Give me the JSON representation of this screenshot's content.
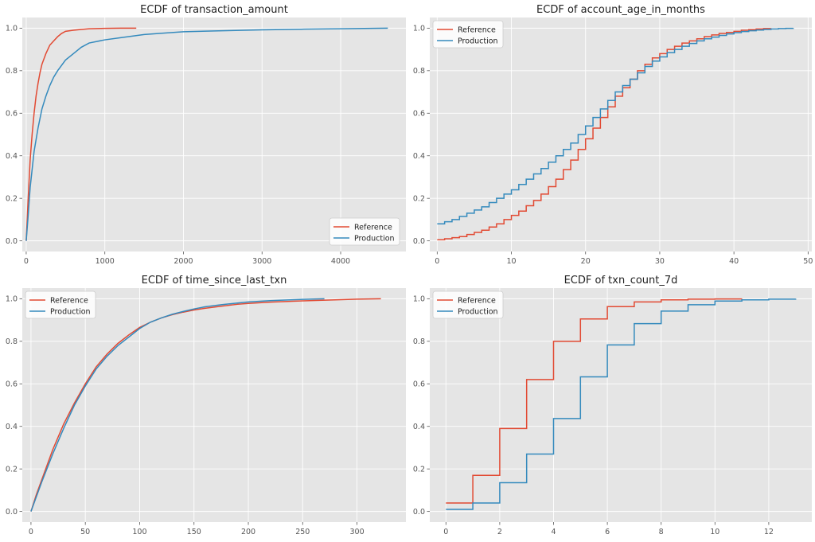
{
  "colors": {
    "Reference": "#e24a33",
    "Production": "#348abd"
  },
  "chart_data": [
    {
      "type": "line",
      "title": "ECDF of transaction_amount",
      "xlabel": "",
      "ylabel": "",
      "xlim": [
        -50,
        4830
      ],
      "ylim": [
        -0.05,
        1.05
      ],
      "xticks": [
        0,
        1000,
        2000,
        3000,
        4000
      ],
      "yticks": [
        0.0,
        0.2,
        0.4,
        0.6,
        0.8,
        1.0
      ],
      "legend": "lower-right",
      "step": false,
      "series": [
        {
          "name": "Reference",
          "x": [
            0,
            25,
            50,
            75,
            100,
            125,
            150,
            175,
            200,
            250,
            300,
            350,
            400,
            450,
            500,
            600,
            700,
            800,
            900,
            1000,
            1200,
            1400
          ],
          "y": [
            0.0,
            0.2,
            0.38,
            0.5,
            0.6,
            0.68,
            0.74,
            0.79,
            0.83,
            0.88,
            0.92,
            0.94,
            0.96,
            0.975,
            0.985,
            0.99,
            0.994,
            0.997,
            0.998,
            0.999,
            1.0,
            1.0
          ]
        },
        {
          "name": "Production",
          "x": [
            0,
            25,
            50,
            100,
            150,
            200,
            250,
            300,
            350,
            400,
            500,
            600,
            700,
            800,
            1000,
            1200,
            1500,
            1800,
            2000,
            2500,
            3000,
            3500,
            4000,
            4600
          ],
          "y": [
            0.0,
            0.12,
            0.25,
            0.42,
            0.53,
            0.62,
            0.68,
            0.73,
            0.77,
            0.8,
            0.85,
            0.88,
            0.91,
            0.93,
            0.945,
            0.955,
            0.97,
            0.978,
            0.983,
            0.988,
            0.992,
            0.995,
            0.997,
            1.0
          ]
        }
      ]
    },
    {
      "type": "line",
      "title": "ECDF of account_age_in_months",
      "xlabel": "",
      "ylabel": "",
      "xlim": [
        -1,
        50.5
      ],
      "ylim": [
        -0.05,
        1.05
      ],
      "xticks": [
        0,
        10,
        20,
        30,
        40,
        50
      ],
      "yticks": [
        0.0,
        0.2,
        0.4,
        0.6,
        0.8,
        1.0
      ],
      "legend": "upper-left",
      "step": true,
      "series": [
        {
          "name": "Reference",
          "x": [
            0,
            1,
            2,
            3,
            4,
            5,
            6,
            7,
            8,
            9,
            10,
            11,
            12,
            13,
            14,
            15,
            16,
            17,
            18,
            19,
            20,
            21,
            22,
            23,
            24,
            25,
            26,
            27,
            28,
            29,
            30,
            31,
            32,
            33,
            34,
            35,
            36,
            37,
            38,
            39,
            40,
            41,
            42,
            43,
            44,
            45
          ],
          "y": [
            0.005,
            0.01,
            0.015,
            0.02,
            0.03,
            0.04,
            0.05,
            0.065,
            0.08,
            0.1,
            0.12,
            0.14,
            0.165,
            0.19,
            0.22,
            0.255,
            0.29,
            0.335,
            0.38,
            0.43,
            0.48,
            0.53,
            0.58,
            0.63,
            0.68,
            0.72,
            0.76,
            0.8,
            0.83,
            0.86,
            0.88,
            0.9,
            0.915,
            0.93,
            0.94,
            0.95,
            0.96,
            0.968,
            0.975,
            0.98,
            0.985,
            0.99,
            0.993,
            0.996,
            0.998,
            1.0
          ]
        },
        {
          "name": "Production",
          "x": [
            0,
            1,
            2,
            3,
            4,
            5,
            6,
            7,
            8,
            9,
            10,
            11,
            12,
            13,
            14,
            15,
            16,
            17,
            18,
            19,
            20,
            21,
            22,
            23,
            24,
            25,
            26,
            27,
            28,
            29,
            30,
            31,
            32,
            33,
            34,
            35,
            36,
            37,
            38,
            39,
            40,
            41,
            42,
            43,
            44,
            45,
            46,
            47,
            48
          ],
          "y": [
            0.08,
            0.09,
            0.1,
            0.115,
            0.13,
            0.145,
            0.16,
            0.18,
            0.2,
            0.22,
            0.24,
            0.265,
            0.29,
            0.315,
            0.34,
            0.37,
            0.4,
            0.43,
            0.46,
            0.5,
            0.54,
            0.58,
            0.62,
            0.66,
            0.7,
            0.73,
            0.76,
            0.79,
            0.82,
            0.845,
            0.865,
            0.885,
            0.9,
            0.915,
            0.928,
            0.94,
            0.95,
            0.958,
            0.966,
            0.973,
            0.979,
            0.984,
            0.988,
            0.991,
            0.994,
            0.996,
            0.998,
            0.999,
            1.0
          ]
        }
      ]
    },
    {
      "type": "line",
      "title": "ECDF of time_since_last_txn",
      "xlabel": "",
      "ylabel": "",
      "xlim": [
        -8,
        345
      ],
      "ylim": [
        -0.05,
        1.05
      ],
      "xticks": [
        0,
        50,
        100,
        150,
        200,
        250,
        300
      ],
      "yticks": [
        0.0,
        0.2,
        0.4,
        0.6,
        0.8,
        1.0
      ],
      "legend": "upper-left",
      "step": false,
      "series": [
        {
          "name": "Reference",
          "x": [
            0,
            5,
            10,
            20,
            30,
            40,
            50,
            60,
            70,
            80,
            90,
            100,
            110,
            120,
            130,
            140,
            150,
            160,
            175,
            190,
            200,
            220,
            250,
            280,
            300,
            322
          ],
          "y": [
            0.0,
            0.08,
            0.15,
            0.29,
            0.41,
            0.51,
            0.6,
            0.68,
            0.74,
            0.79,
            0.83,
            0.865,
            0.89,
            0.91,
            0.925,
            0.937,
            0.947,
            0.955,
            0.965,
            0.974,
            0.978,
            0.984,
            0.99,
            0.995,
            0.998,
            1.0
          ]
        },
        {
          "name": "Production",
          "x": [
            0,
            5,
            10,
            20,
            30,
            40,
            50,
            60,
            70,
            80,
            90,
            100,
            110,
            120,
            130,
            140,
            150,
            160,
            175,
            190,
            200,
            220,
            250,
            270
          ],
          "y": [
            0.0,
            0.07,
            0.14,
            0.27,
            0.39,
            0.5,
            0.59,
            0.67,
            0.73,
            0.78,
            0.82,
            0.86,
            0.89,
            0.91,
            0.927,
            0.94,
            0.952,
            0.962,
            0.972,
            0.98,
            0.985,
            0.991,
            0.997,
            1.0
          ]
        }
      ]
    },
    {
      "type": "line",
      "title": "ECDF of txn_count_7d",
      "xlabel": "",
      "ylabel": "",
      "xlim": [
        -0.6,
        13.6
      ],
      "ylim": [
        -0.05,
        1.05
      ],
      "xticks": [
        0,
        2,
        4,
        6,
        8,
        10,
        12
      ],
      "yticks": [
        0.0,
        0.2,
        0.4,
        0.6,
        0.8,
        1.0
      ],
      "legend": "upper-left",
      "step": true,
      "series": [
        {
          "name": "Reference",
          "x": [
            0,
            1,
            2,
            3,
            4,
            5,
            6,
            7,
            8,
            9,
            10,
            11
          ],
          "y": [
            0.04,
            0.17,
            0.39,
            0.62,
            0.8,
            0.905,
            0.963,
            0.985,
            0.995,
            0.998,
            0.999,
            1.0
          ]
        },
        {
          "name": "Production",
          "x": [
            0,
            1,
            2,
            3,
            4,
            5,
            6,
            7,
            8,
            9,
            10,
            11,
            12,
            13
          ],
          "y": [
            0.01,
            0.04,
            0.135,
            0.27,
            0.437,
            0.633,
            0.783,
            0.883,
            0.942,
            0.972,
            0.989,
            0.995,
            0.998,
            1.0
          ]
        }
      ]
    }
  ]
}
